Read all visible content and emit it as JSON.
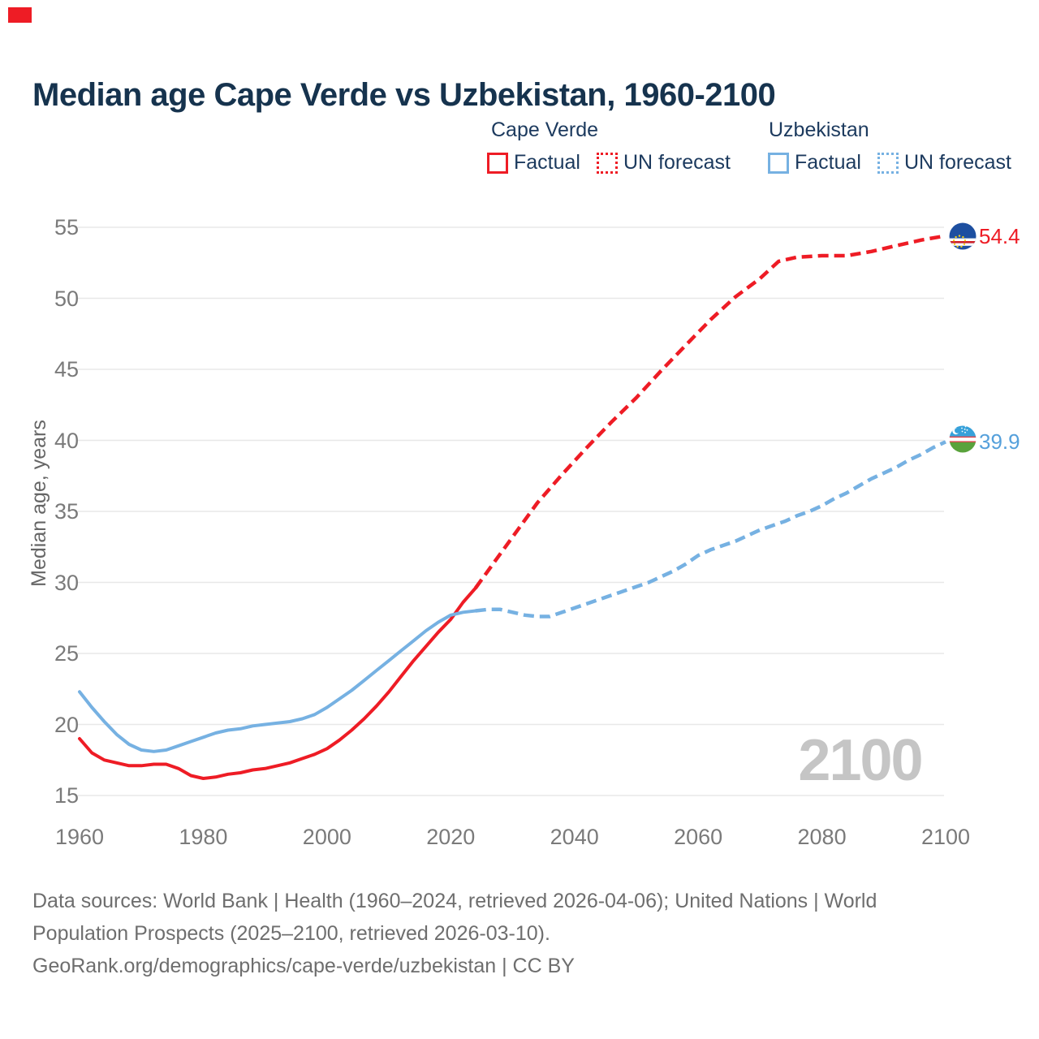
{
  "page": {
    "corner_marker_color": "#ee1c25"
  },
  "title": "Median age Cape Verde vs Uzbekistan, 1960-2100",
  "legend": {
    "groups": [
      {
        "title": "Cape Verde",
        "factual": "Factual",
        "forecast": "UN forecast"
      },
      {
        "title": "Uzbekistan",
        "factual": "Factual",
        "forecast": "UN forecast"
      }
    ]
  },
  "footer": {
    "line1": "Data sources: World Bank | Health (1960–2024, retrieved 2026-04-06); United Nations | World",
    "line2": "Population Prospects (2025–2100, retrieved 2026-03-10).",
    "line3": "GeoRank.org/demographics/cape-verde/uzbekistan | CC BY"
  },
  "chart_data": {
    "type": "line",
    "title": "Median age Cape Verde vs Uzbekistan, 1960-2100",
    "xlabel": "",
    "ylabel": "Median age, years",
    "x_range": [
      1960,
      2100
    ],
    "ylim": [
      15,
      55
    ],
    "y_ticks": [
      15,
      20,
      25,
      30,
      35,
      40,
      45,
      50,
      55
    ],
    "x_ticks": [
      1960,
      1980,
      2000,
      2020,
      2040,
      2060,
      2080,
      2100
    ],
    "grid": true,
    "legend_position": "top-right",
    "watermark": "2100",
    "colors": {
      "cape_verde": "#ee1c25",
      "uzbekistan": "#76b1e2",
      "cape_verde_label": "#ee1c25",
      "uzbekistan_label": "#55a0db",
      "gridline": "#e8e8e8"
    },
    "end_labels": {
      "cape_verde": "54.4",
      "uzbekistan": "39.9"
    },
    "series": [
      {
        "name": "Cape Verde — Factual",
        "color_key": "cape_verde",
        "dashed": false,
        "points": [
          [
            1960,
            19.0
          ],
          [
            1962,
            18.0
          ],
          [
            1964,
            17.5
          ],
          [
            1966,
            17.3
          ],
          [
            1968,
            17.1
          ],
          [
            1970,
            17.1
          ],
          [
            1972,
            17.2
          ],
          [
            1974,
            17.2
          ],
          [
            1976,
            16.9
          ],
          [
            1978,
            16.4
          ],
          [
            1980,
            16.2
          ],
          [
            1982,
            16.3
          ],
          [
            1984,
            16.5
          ],
          [
            1986,
            16.6
          ],
          [
            1988,
            16.8
          ],
          [
            1990,
            16.9
          ],
          [
            1992,
            17.1
          ],
          [
            1994,
            17.3
          ],
          [
            1996,
            17.6
          ],
          [
            1998,
            17.9
          ],
          [
            2000,
            18.3
          ],
          [
            2002,
            18.9
          ],
          [
            2004,
            19.6
          ],
          [
            2006,
            20.4
          ],
          [
            2008,
            21.3
          ],
          [
            2010,
            22.3
          ],
          [
            2012,
            23.4
          ],
          [
            2014,
            24.5
          ],
          [
            2016,
            25.5
          ],
          [
            2018,
            26.5
          ],
          [
            2020,
            27.4
          ],
          [
            2022,
            28.6
          ],
          [
            2024,
            29.6
          ]
        ]
      },
      {
        "name": "Cape Verde — UN forecast",
        "color_key": "cape_verde",
        "dashed": true,
        "points": [
          [
            2024,
            29.6
          ],
          [
            2027,
            31.4
          ],
          [
            2030,
            33.2
          ],
          [
            2034,
            35.6
          ],
          [
            2038,
            37.6
          ],
          [
            2042,
            39.5
          ],
          [
            2046,
            41.3
          ],
          [
            2050,
            43.0
          ],
          [
            2054,
            44.9
          ],
          [
            2058,
            46.7
          ],
          [
            2062,
            48.5
          ],
          [
            2066,
            50.1
          ],
          [
            2070,
            51.4
          ],
          [
            2073,
            52.6
          ],
          [
            2076,
            52.9
          ],
          [
            2080,
            53.0
          ],
          [
            2084,
            53.0
          ],
          [
            2088,
            53.3
          ],
          [
            2092,
            53.7
          ],
          [
            2096,
            54.1
          ],
          [
            2100,
            54.4
          ]
        ]
      },
      {
        "name": "Uzbekistan — Factual",
        "color_key": "uzbekistan",
        "dashed": false,
        "points": [
          [
            1960,
            22.3
          ],
          [
            1962,
            21.2
          ],
          [
            1964,
            20.2
          ],
          [
            1966,
            19.3
          ],
          [
            1968,
            18.6
          ],
          [
            1970,
            18.2
          ],
          [
            1972,
            18.1
          ],
          [
            1974,
            18.2
          ],
          [
            1976,
            18.5
          ],
          [
            1978,
            18.8
          ],
          [
            1980,
            19.1
          ],
          [
            1982,
            19.4
          ],
          [
            1984,
            19.6
          ],
          [
            1986,
            19.7
          ],
          [
            1988,
            19.9
          ],
          [
            1990,
            20.0
          ],
          [
            1992,
            20.1
          ],
          [
            1994,
            20.2
          ],
          [
            1996,
            20.4
          ],
          [
            1998,
            20.7
          ],
          [
            2000,
            21.2
          ],
          [
            2002,
            21.8
          ],
          [
            2004,
            22.4
          ],
          [
            2006,
            23.1
          ],
          [
            2008,
            23.8
          ],
          [
            2010,
            24.5
          ],
          [
            2012,
            25.2
          ],
          [
            2014,
            25.9
          ],
          [
            2016,
            26.6
          ],
          [
            2018,
            27.2
          ],
          [
            2020,
            27.7
          ],
          [
            2022,
            27.9
          ],
          [
            2024,
            28.0
          ]
        ]
      },
      {
        "name": "Uzbekistan — UN forecast",
        "color_key": "uzbekistan",
        "dashed": true,
        "points": [
          [
            2024,
            28.0
          ],
          [
            2026,
            28.1
          ],
          [
            2028,
            28.1
          ],
          [
            2030,
            27.9
          ],
          [
            2032,
            27.7
          ],
          [
            2034,
            27.6
          ],
          [
            2036,
            27.6
          ],
          [
            2038,
            27.9
          ],
          [
            2040,
            28.2
          ],
          [
            2042,
            28.5
          ],
          [
            2044,
            28.8
          ],
          [
            2046,
            29.1
          ],
          [
            2048,
            29.4
          ],
          [
            2050,
            29.7
          ],
          [
            2052,
            30.0
          ],
          [
            2054,
            30.4
          ],
          [
            2056,
            30.8
          ],
          [
            2058,
            31.3
          ],
          [
            2060,
            31.9
          ],
          [
            2062,
            32.3
          ],
          [
            2064,
            32.6
          ],
          [
            2066,
            32.9
          ],
          [
            2068,
            33.3
          ],
          [
            2070,
            33.7
          ],
          [
            2072,
            34.0
          ],
          [
            2074,
            34.3
          ],
          [
            2076,
            34.7
          ],
          [
            2078,
            35.0
          ],
          [
            2080,
            35.4
          ],
          [
            2082,
            35.9
          ],
          [
            2084,
            36.3
          ],
          [
            2086,
            36.8
          ],
          [
            2088,
            37.3
          ],
          [
            2090,
            37.7
          ],
          [
            2092,
            38.1
          ],
          [
            2094,
            38.6
          ],
          [
            2096,
            39.0
          ],
          [
            2098,
            39.5
          ],
          [
            2100,
            39.9
          ]
        ]
      }
    ]
  }
}
